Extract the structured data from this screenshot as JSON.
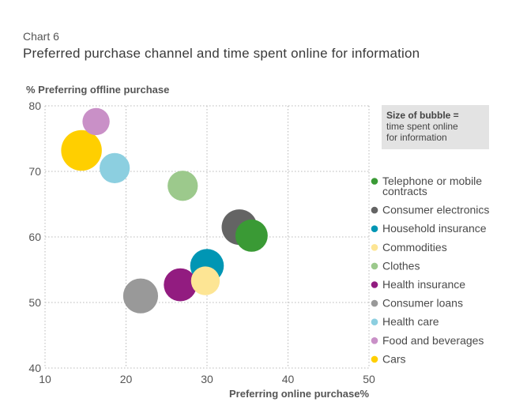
{
  "chart_data": {
    "type": "scatter",
    "subtitle": "Chart 6",
    "title": "Preferred purchase channel and time spent online for information",
    "ylabel": "%  Preferring offline purchase",
    "xlabel": "Preferring  online purchase",
    "xlabel_unit": "%",
    "xlim": [
      10,
      50
    ],
    "ylim": [
      40,
      80
    ],
    "xticks": [
      10,
      20,
      30,
      40,
      50
    ],
    "yticks": [
      40,
      50,
      60,
      70,
      80
    ],
    "grid": true,
    "size_note": {
      "title": "Size of bubble =",
      "lines": [
        "time spent online",
        "for information"
      ]
    },
    "legend_position": "right",
    "series": [
      {
        "name": "Telephone or mobile contracts",
        "legend_lines": [
          "Telephone or mobile",
          "contracts"
        ],
        "x": 35.5,
        "y": 60.2,
        "size": 2.4,
        "color": "#3a9a35"
      },
      {
        "name": "Consumer electronics",
        "legend_lines": [
          "Consumer electronics"
        ],
        "x": 34.0,
        "y": 61.5,
        "size": 2.9,
        "color": "#646464"
      },
      {
        "name": "Household insurance",
        "legend_lines": [
          "Household insurance"
        ],
        "x": 30.0,
        "y": 55.6,
        "size": 2.6,
        "color": "#0096b4"
      },
      {
        "name": "Commodities",
        "legend_lines": [
          "Commodities"
        ],
        "x": 29.8,
        "y": 53.3,
        "size": 1.9,
        "color": "#fde594"
      },
      {
        "name": "Clothes",
        "legend_lines": [
          "Clothes"
        ],
        "x": 27.0,
        "y": 67.8,
        "size": 2.1,
        "color": "#9cc98c"
      },
      {
        "name": "Health insurance",
        "legend_lines": [
          "Health insurance"
        ],
        "x": 26.7,
        "y": 52.7,
        "size": 2.5,
        "color": "#921c80"
      },
      {
        "name": "Consumer loans",
        "legend_lines": [
          "Consumer loans"
        ],
        "x": 21.8,
        "y": 51.0,
        "size": 2.8,
        "color": "#999999"
      },
      {
        "name": "Health care",
        "legend_lines": [
          "Health care"
        ],
        "x": 18.6,
        "y": 70.5,
        "size": 2.1,
        "color": "#8ccfe0"
      },
      {
        "name": "Food and beverages",
        "legend_lines": [
          "Food and beverages"
        ],
        "x": 16.3,
        "y": 77.6,
        "size": 1.7,
        "color": "#c990c7"
      },
      {
        "name": "Cars",
        "legend_lines": [
          "Cars"
        ],
        "x": 14.5,
        "y": 73.2,
        "size": 3.8,
        "color": "#ffcf00"
      }
    ]
  }
}
